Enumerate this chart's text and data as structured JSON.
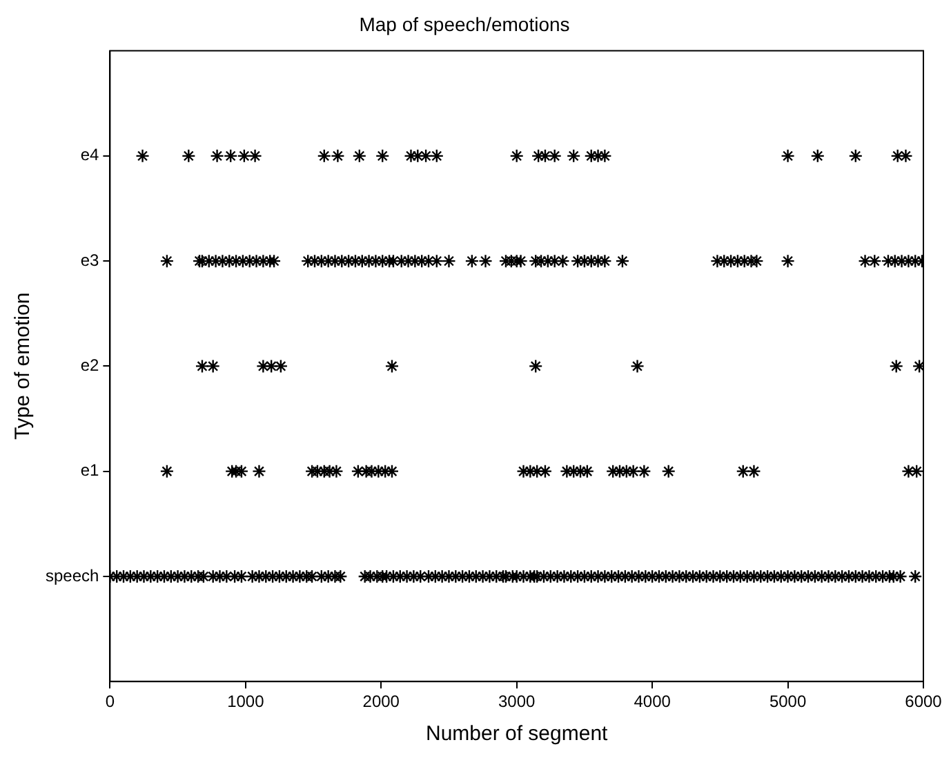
{
  "chart_data": {
    "type": "scatter",
    "title": "Map of speech/emotions",
    "xlabel": "Number of segment",
    "ylabel": "Type of emotion",
    "marker": "cross",
    "legend": false,
    "orientation": "horizontal",
    "categories": [
      "e4",
      "e3",
      "e2",
      "e1",
      "speech"
    ],
    "xlim": [
      0,
      6000
    ],
    "xticks": [
      0,
      1000,
      2000,
      3000,
      4000,
      5000,
      6000
    ],
    "series": [
      {
        "color": "#000000",
        "x": [
          "speech",
          "speech",
          "speech",
          "speech",
          "speech",
          "speech",
          "speech",
          "speech",
          "speech",
          "speech",
          "speech",
          "speech",
          "speech",
          "speech",
          "speech",
          "speech",
          "speech",
          "speech",
          "speech",
          "speech",
          "speech",
          "speech",
          "speech",
          "speech",
          "speech",
          "speech",
          "speech",
          "speech",
          "speech",
          "speech",
          "speech",
          "speech",
          "speech",
          "speech",
          "speech",
          "speech",
          "speech",
          "speech",
          "speech",
          "speech",
          "speech",
          "speech",
          "speech",
          "speech",
          "speech",
          "speech",
          "speech",
          "speech",
          "speech",
          "speech",
          "speech",
          "speech",
          "speech",
          "speech",
          "speech",
          "speech",
          "speech",
          "speech",
          "speech",
          "speech",
          "speech",
          "speech",
          "speech",
          "speech",
          "speech",
          "speech",
          "speech",
          "speech",
          "speech",
          "speech",
          "speech",
          "speech",
          "speech",
          "speech",
          "speech",
          "speech",
          "speech",
          "speech",
          "speech",
          "speech",
          "speech",
          "speech",
          "speech",
          "speech",
          "speech",
          "speech",
          "speech",
          "speech",
          "speech",
          "speech",
          "speech",
          "speech",
          "speech",
          "speech",
          "speech",
          "speech",
          "speech",
          "speech",
          "speech",
          "speech",
          "speech",
          "speech",
          "speech",
          "speech",
          "speech",
          "speech",
          "speech",
          "speech",
          "speech",
          "speech",
          "speech",
          "speech",
          "speech",
          "speech",
          "speech",
          "speech",
          "speech",
          "speech"
        ],
        "values": [
          0,
          50,
          100,
          150,
          200,
          250,
          300,
          350,
          400,
          450,
          500,
          550,
          600,
          650,
          690,
          760,
          810,
          860,
          920,
          970,
          1050,
          1100,
          1150,
          1200,
          1250,
          1300,
          1350,
          1400,
          1450,
          1490,
          1560,
          1610,
          1660,
          1700,
          1880,
          1920,
          1970,
          2010,
          2040,
          2090,
          2140,
          2190,
          2240,
          2290,
          2350,
          2400,
          2450,
          2500,
          2550,
          2600,
          2650,
          2700,
          2750,
          2800,
          2850,
          2900,
          2920,
          2970,
          3000,
          3050,
          3100,
          3130,
          3150,
          3200,
          3250,
          3300,
          3350,
          3400,
          3450,
          3500,
          3550,
          3600,
          3650,
          3700,
          3750,
          3800,
          3850,
          3900,
          3950,
          4000,
          4050,
          4100,
          4150,
          4200,
          4250,
          4300,
          4350,
          4400,
          4450,
          4500,
          4550,
          4600,
          4650,
          4700,
          4750,
          4800,
          4850,
          4900,
          4950,
          5000,
          5050,
          5100,
          5150,
          5200,
          5250,
          5300,
          5350,
          5400,
          5450,
          5500,
          5550,
          5600,
          5650,
          5700,
          5750,
          5780,
          5830,
          5940
        ]
      },
      {
        "color": "#000000",
        "x": [
          "e1",
          "e1",
          "e1",
          "e1",
          "e1",
          "e1",
          "e1",
          "e1",
          "e1",
          "e1",
          "e1",
          "e1",
          "e1",
          "e1",
          "e1",
          "e1",
          "e1",
          "e1",
          "e1",
          "e1",
          "e1",
          "e1",
          "e1",
          "e1",
          "e1",
          "e1",
          "e1",
          "e1",
          "e1",
          "e1",
          "e1",
          "e1",
          "e1",
          "e1"
        ],
        "values": [
          420,
          900,
          930,
          970,
          1100,
          1490,
          1530,
          1580,
          1620,
          1670,
          1830,
          1890,
          1930,
          1980,
          2030,
          2080,
          3050,
          3100,
          3150,
          3210,
          3370,
          3420,
          3470,
          3520,
          3710,
          3760,
          3810,
          3860,
          3940,
          4120,
          4670,
          4750,
          5890,
          5950
        ]
      },
      {
        "color": "#000000",
        "x": [
          "e2",
          "e2",
          "e2",
          "e2",
          "e2",
          "e2",
          "e2",
          "e2",
          "e2",
          "e2"
        ],
        "values": [
          680,
          760,
          1130,
          1190,
          1260,
          2080,
          3140,
          3890,
          5800,
          5970
        ]
      },
      {
        "color": "#000000",
        "x": [
          "e3",
          "e3",
          "e3",
          "e3",
          "e3",
          "e3",
          "e3",
          "e3",
          "e3",
          "e3",
          "e3",
          "e3",
          "e3",
          "e3",
          "e3",
          "e3",
          "e3",
          "e3",
          "e3",
          "e3",
          "e3",
          "e3",
          "e3",
          "e3",
          "e3",
          "e3",
          "e3",
          "e3",
          "e3",
          "e3",
          "e3",
          "e3",
          "e3",
          "e3",
          "e3",
          "e3",
          "e3",
          "e3",
          "e3",
          "e3",
          "e3",
          "e3",
          "e3",
          "e3",
          "e3",
          "e3",
          "e3",
          "e3",
          "e3",
          "e3",
          "e3",
          "e3",
          "e3",
          "e3",
          "e3",
          "e3",
          "e3",
          "e3",
          "e3",
          "e3",
          "e3",
          "e3",
          "e3",
          "e3",
          "e3",
          "e3",
          "e3",
          "e3"
        ],
        "values": [
          420,
          660,
          680,
          730,
          780,
          830,
          880,
          930,
          980,
          1030,
          1080,
          1130,
          1180,
          1210,
          1460,
          1510,
          1560,
          1610,
          1660,
          1710,
          1760,
          1810,
          1860,
          1910,
          1960,
          2010,
          2060,
          2090,
          2150,
          2200,
          2250,
          2300,
          2350,
          2410,
          2500,
          2670,
          2770,
          2920,
          2960,
          3000,
          3030,
          3140,
          3180,
          3230,
          3280,
          3340,
          3450,
          3500,
          3550,
          3600,
          3650,
          3780,
          4480,
          4530,
          4580,
          4630,
          4680,
          4730,
          4770,
          5000,
          5570,
          5640,
          5740,
          5790,
          5840,
          5890,
          5940,
          5990
        ]
      },
      {
        "color": "#000000",
        "x": [
          "e4",
          "e4",
          "e4",
          "e4",
          "e4",
          "e4",
          "e4",
          "e4",
          "e4",
          "e4",
          "e4",
          "e4",
          "e4",
          "e4",
          "e4",
          "e4",
          "e4",
          "e4",
          "e4",
          "e4",
          "e4",
          "e4",
          "e4",
          "e4",
          "e4",
          "e4",
          "e4"
        ],
        "values": [
          240,
          580,
          790,
          890,
          990,
          1070,
          1580,
          1680,
          1840,
          2010,
          2220,
          2270,
          2330,
          2410,
          3000,
          3160,
          3210,
          3280,
          3420,
          3550,
          3600,
          3650,
          5000,
          5220,
          5500,
          5810,
          5870
        ]
      }
    ]
  }
}
